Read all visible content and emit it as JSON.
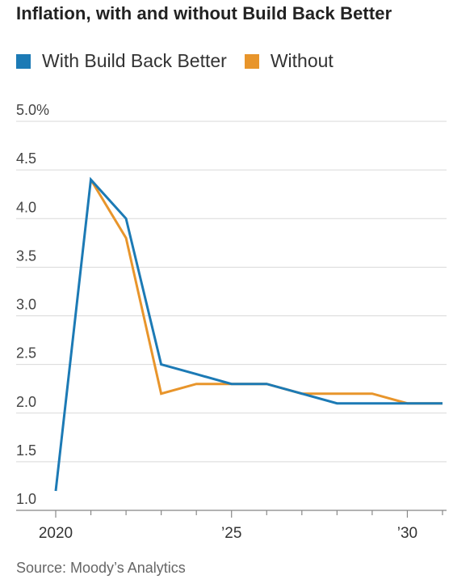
{
  "chart_data": {
    "type": "line",
    "title": "Inflation, with and without Build Back Better",
    "x": [
      2020,
      2021,
      2022,
      2023,
      2024,
      2025,
      2026,
      2027,
      2028,
      2029,
      2030,
      2031
    ],
    "x_tick_labels": [
      {
        "x": 2020,
        "label": "2020"
      },
      {
        "x": 2025,
        "label": "’25"
      },
      {
        "x": 2030,
        "label": "’30"
      }
    ],
    "y_tick_labels": [
      {
        "y": 5.0,
        "label": "5.0%"
      },
      {
        "y": 4.5,
        "label": "4.5"
      },
      {
        "y": 4.0,
        "label": "4.0"
      },
      {
        "y": 3.5,
        "label": "3.5"
      },
      {
        "y": 3.0,
        "label": "3.0"
      },
      {
        "y": 2.5,
        "label": "2.5"
      },
      {
        "y": 2.0,
        "label": "2.0"
      },
      {
        "y": 1.5,
        "label": "1.5"
      },
      {
        "y": 1.0,
        "label": "1.0"
      }
    ],
    "ylim": [
      1.0,
      5.0
    ],
    "xlim": [
      2020,
      2031
    ],
    "grid": true,
    "legend_position": "top-left",
    "series": [
      {
        "name": "Without",
        "color": "#E8952B",
        "values": [
          null,
          4.4,
          3.8,
          2.2,
          2.3,
          2.3,
          2.3,
          2.2,
          2.2,
          2.2,
          2.1,
          2.1
        ]
      },
      {
        "name": "With Build Back Better",
        "color": "#1C7AB5",
        "values": [
          1.2,
          4.4,
          4.0,
          2.5,
          2.4,
          2.3,
          2.3,
          2.2,
          2.1,
          2.1,
          2.1,
          2.1
        ]
      }
    ],
    "legend_order": [
      "With Build Back Better",
      "Without"
    ],
    "source": "Source: Moody’s Analytics"
  }
}
